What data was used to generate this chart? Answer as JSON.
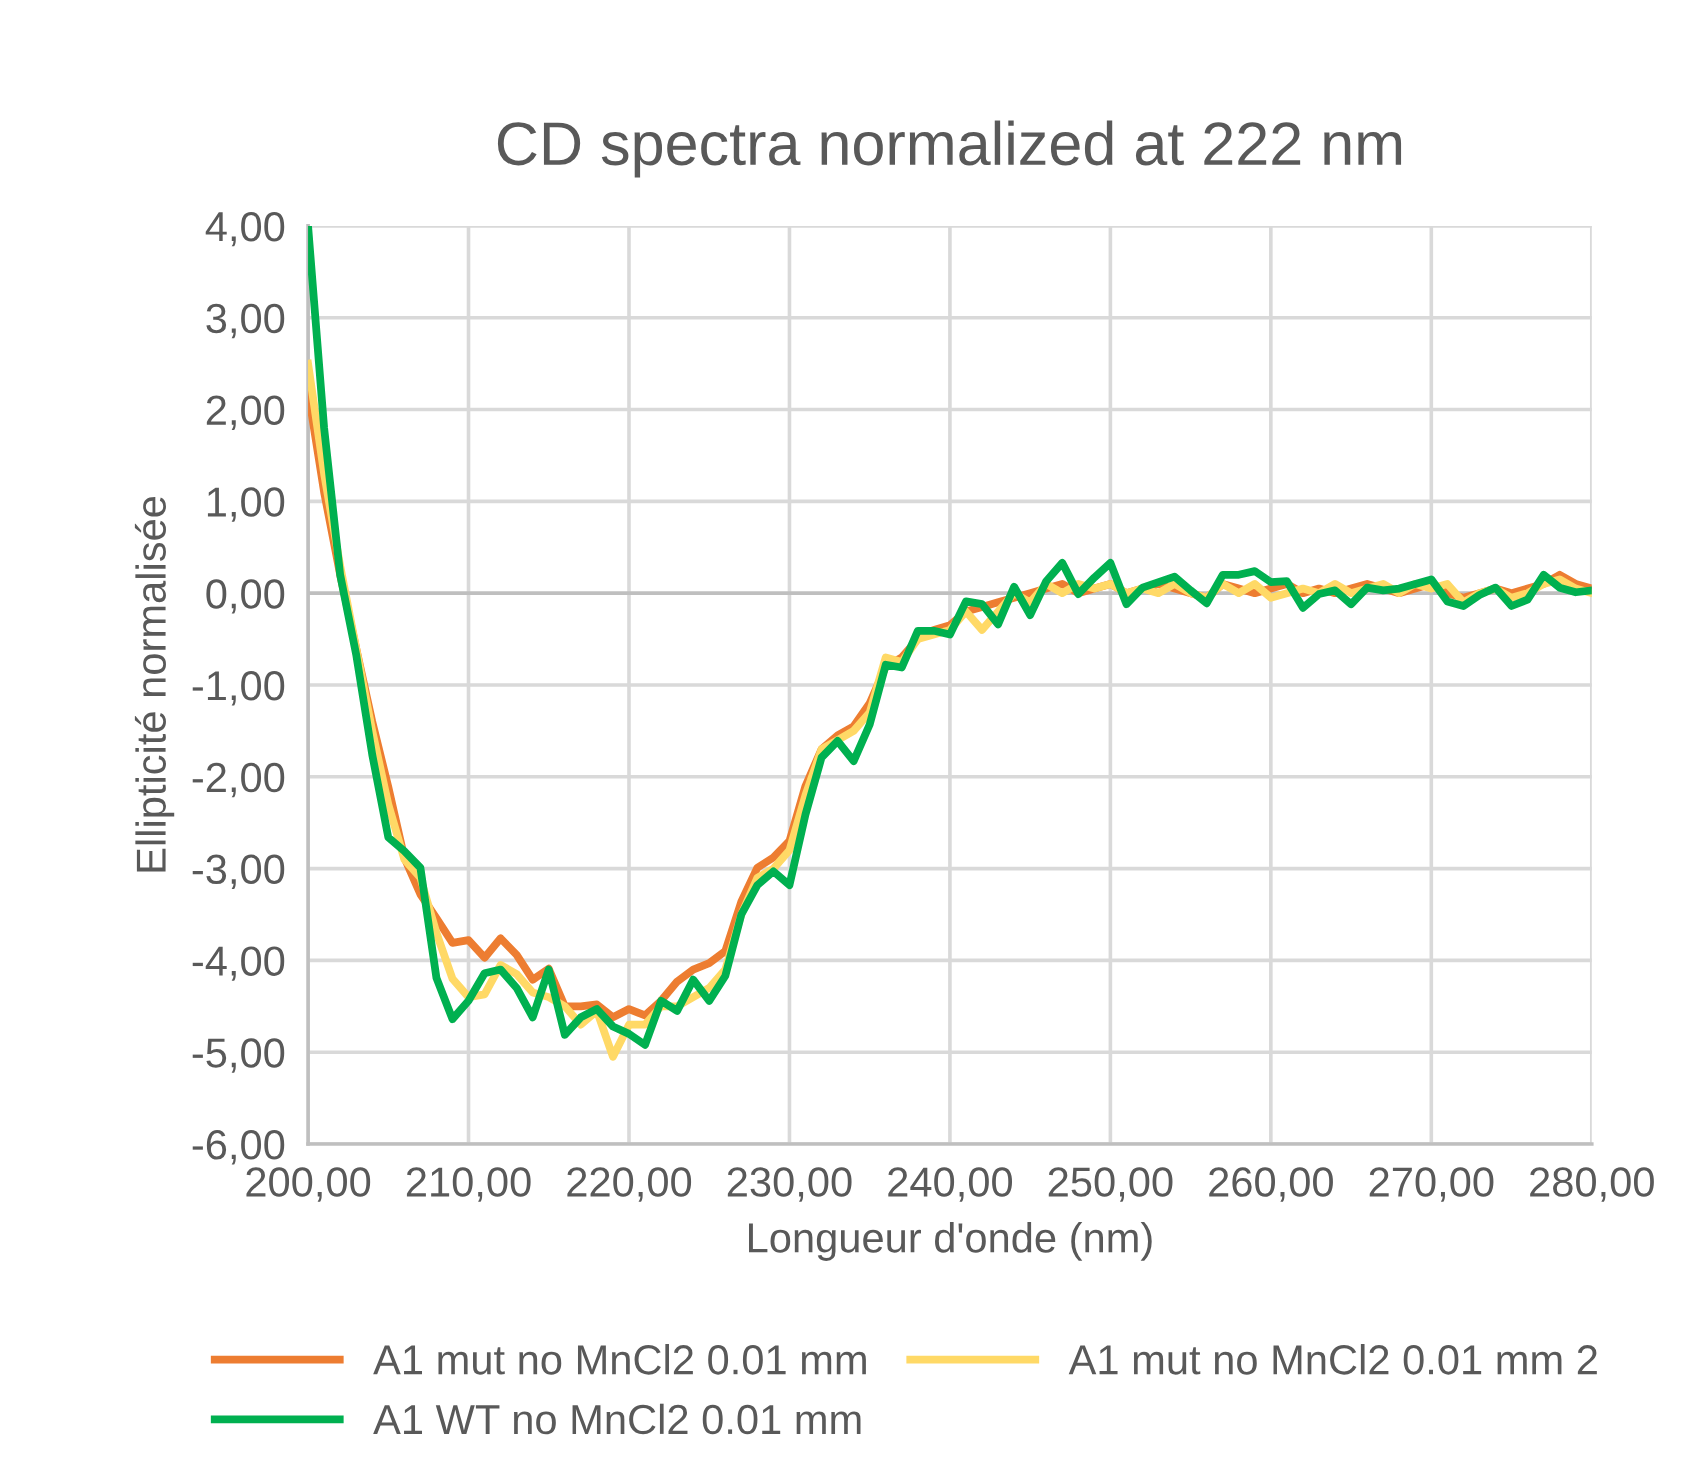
{
  "chart_data": {
    "type": "line",
    "title": "CD spectra normalized at 222 nm",
    "xlabel": "Longueur d'onde (nm)",
    "ylabel": "Ellipticité normalisée",
    "x": [
      200,
      201,
      202,
      203,
      204,
      205,
      206,
      207,
      208,
      209,
      210,
      211,
      212,
      213,
      214,
      215,
      216,
      217,
      218,
      219,
      220,
      221,
      222,
      223,
      224,
      225,
      226,
      227,
      228,
      229,
      230,
      231,
      232,
      233,
      234,
      235,
      236,
      237,
      238,
      239,
      240,
      241,
      242,
      243,
      244,
      245,
      246,
      247,
      248,
      249,
      250,
      251,
      252,
      253,
      254,
      255,
      256,
      257,
      258,
      259,
      260,
      261,
      262,
      263,
      264,
      265,
      266,
      267,
      268,
      269,
      270,
      271,
      272,
      273,
      274,
      275,
      276,
      277,
      278,
      279,
      280
    ],
    "series": [
      {
        "name": "A1 mut no MnCl2 0.01 mm",
        "color": "#ed7d31",
        "values": [
          2.2,
          1.1,
          0.2,
          -0.6,
          -1.4,
          -2.11,
          -2.88,
          -3.28,
          -3.54,
          -3.81,
          -3.78,
          -3.97,
          -3.76,
          -3.94,
          -4.21,
          -4.09,
          -4.5,
          -4.5,
          -4.48,
          -4.62,
          -4.53,
          -4.6,
          -4.44,
          -4.23,
          -4.1,
          -4.03,
          -3.9,
          -3.36,
          -2.99,
          -2.88,
          -2.7,
          -2.1,
          -1.7,
          -1.55,
          -1.45,
          -1.2,
          -0.8,
          -0.7,
          -0.5,
          -0.4,
          -0.35,
          -0.2,
          -0.15,
          -0.1,
          -0.05,
          0.0,
          0.05,
          0.1,
          0.0,
          0.05,
          0.1,
          0.0,
          0.05,
          0.1,
          0.05,
          0.0,
          -0.05,
          0.1,
          0.05,
          0.0,
          0.05,
          0.1,
          0.0,
          0.05,
          0.0,
          0.05,
          0.1,
          0.05,
          0.0,
          0.05,
          0.1,
          0.0,
          -0.05,
          0.0,
          0.05,
          0.0,
          0.05,
          0.1,
          0.2,
          0.1,
          0.05
        ]
      },
      {
        "name": "A1 mut no MnCl2 0.01 mm 2",
        "color": "#ffd966",
        "values": [
          2.5,
          1.3,
          0.3,
          -0.6,
          -1.5,
          -2.3,
          -2.9,
          -3.1,
          -3.7,
          -4.2,
          -4.4,
          -4.37,
          -4.05,
          -4.15,
          -4.35,
          -4.4,
          -4.5,
          -4.7,
          -4.55,
          -5.05,
          -4.7,
          -4.7,
          -4.5,
          -4.5,
          -4.4,
          -4.3,
          -4.1,
          -3.5,
          -3.1,
          -3.0,
          -2.8,
          -2.2,
          -1.7,
          -1.6,
          -1.5,
          -1.3,
          -0.7,
          -0.75,
          -0.5,
          -0.45,
          -0.4,
          -0.2,
          -0.4,
          -0.2,
          0.0,
          -0.1,
          0.1,
          0.0,
          0.1,
          0.05,
          0.1,
          0.0,
          0.05,
          0.0,
          0.1,
          0.0,
          -0.05,
          0.1,
          0.0,
          0.1,
          -0.05,
          0.0,
          0.05,
          0.0,
          0.1,
          0.0,
          0.05,
          0.1,
          0.0,
          0.1,
          0.05,
          0.1,
          -0.1,
          0.0,
          0.05,
          -0.05,
          0.0,
          0.1,
          0.15,
          0.05,
          0.0
        ]
      },
      {
        "name": "A1 WT no MnCl2 0.01 mm",
        "color": "#00b050",
        "values": [
          4.0,
          1.8,
          0.2,
          -0.67,
          -1.76,
          -2.66,
          -2.81,
          -2.99,
          -4.19,
          -4.64,
          -4.44,
          -4.14,
          -4.1,
          -4.3,
          -4.62,
          -4.1,
          -4.81,
          -4.62,
          -4.53,
          -4.72,
          -4.8,
          -4.92,
          -4.44,
          -4.55,
          -4.21,
          -4.44,
          -4.17,
          -3.5,
          -3.18,
          -3.03,
          -3.18,
          -2.41,
          -1.79,
          -1.61,
          -1.83,
          -1.43,
          -0.78,
          -0.81,
          -0.41,
          -0.41,
          -0.45,
          -0.09,
          -0.12,
          -0.34,
          0.07,
          -0.24,
          0.13,
          0.33,
          -0.01,
          0.17,
          0.33,
          -0.12,
          0.06,
          0.12,
          0.18,
          0.03,
          -0.11,
          0.2,
          0.2,
          0.24,
          0.12,
          0.13,
          -0.16,
          -0.01,
          0.03,
          -0.12,
          0.06,
          0.03,
          0.05,
          0.1,
          0.15,
          -0.09,
          -0.14,
          -0.02,
          0.06,
          -0.14,
          -0.07,
          0.2,
          0.06,
          0.01,
          0.03
        ]
      }
    ],
    "xlim": [
      200,
      280
    ],
    "xticks": [
      {
        "value": 200,
        "label": "200,00"
      },
      {
        "value": 210,
        "label": "210,00"
      },
      {
        "value": 220,
        "label": "220,00"
      },
      {
        "value": 230,
        "label": "230,00"
      },
      {
        "value": 240,
        "label": "240,00"
      },
      {
        "value": 250,
        "label": "250,00"
      },
      {
        "value": 260,
        "label": "260,00"
      },
      {
        "value": 270,
        "label": "270,00"
      },
      {
        "value": 280,
        "label": "280,00"
      }
    ],
    "ylim": [
      -6,
      4
    ],
    "yticks": [
      {
        "value": -6,
        "label": "-6,00"
      },
      {
        "value": -5,
        "label": "-5,00"
      },
      {
        "value": -4,
        "label": "-4,00"
      },
      {
        "value": -3,
        "label": "-3,00"
      },
      {
        "value": -2,
        "label": "-2,00"
      },
      {
        "value": -1,
        "label": "-1,00"
      },
      {
        "value": 0,
        "label": "0,00"
      },
      {
        "value": 1,
        "label": "1,00"
      },
      {
        "value": 2,
        "label": "2,00"
      },
      {
        "value": 3,
        "label": "3,00"
      },
      {
        "value": 4,
        "label": "4,00"
      }
    ],
    "grid": true,
    "legend": "bottom",
    "marker": "none",
    "line_style": "solid"
  }
}
